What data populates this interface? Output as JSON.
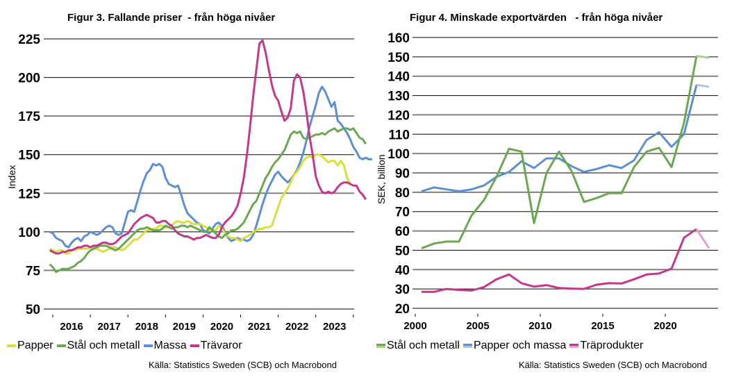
{
  "colors": {
    "papper": "#d9df3c",
    "stal": "#6aa84f",
    "massa": "#5b8fd4",
    "travaror": "#c4378a",
    "stal_light": "#a9d18e",
    "massa_light": "#a8c4ea",
    "tra_light": "#e8a0c8",
    "grid_dark": "#000000",
    "grid_gray": "#808080"
  },
  "chart_data": [
    {
      "type": "line",
      "title": "Figur 3. Fallande priser  - från höga nivåer",
      "ylabel": "Index",
      "ylim": [
        50,
        225
      ],
      "ytick_values": [
        50,
        75,
        100,
        125,
        150,
        175,
        200,
        225
      ],
      "yticks": [
        "50",
        "75",
        "100",
        "125",
        "150",
        "175",
        "200",
        "225"
      ],
      "xlim": [
        2015.85,
        2024.0
      ],
      "xtick_labels": [
        "2016",
        "2017",
        "2018",
        "2019",
        "2020",
        "2021",
        "2022",
        "2023"
      ],
      "xtick_marks": [
        2016,
        2017,
        2018,
        2019,
        2020,
        2021,
        2022,
        2023,
        2024
      ],
      "grid": true,
      "legend_position": "bottom",
      "legend": [
        "Papper",
        "Stål och metall",
        "Massa",
        "Trävaror"
      ],
      "source": "Källa: Statistics Sweden (SCB) och Macrobond",
      "x_start": 2015.92,
      "x_step": 0.0833,
      "series": [
        {
          "name": "Papper",
          "color_key": "papper",
          "values": [
            89,
            88,
            87,
            88,
            88,
            86,
            86,
            88,
            88,
            89,
            89,
            89,
            89,
            90,
            90,
            89,
            88,
            87,
            88,
            89,
            90,
            90,
            89,
            88,
            89,
            91,
            93,
            95,
            95,
            97,
            99,
            101,
            101,
            102,
            102,
            104,
            104,
            103,
            103,
            104,
            106,
            107,
            106,
            106,
            107,
            106,
            105,
            105,
            105,
            104,
            103,
            101,
            101,
            101,
            104,
            102,
            99,
            97,
            96,
            96,
            95,
            94,
            96,
            97,
            98,
            100,
            101,
            102,
            102,
            103,
            103,
            104,
            110,
            116,
            122,
            125,
            128,
            132,
            137,
            139,
            142,
            146,
            148,
            149,
            148,
            150,
            150,
            149,
            147,
            145,
            146,
            146,
            143,
            146,
            143,
            135,
            131
          ]
        },
        {
          "name": "Stål och metall",
          "color_key": "stal",
          "values": [
            79,
            77,
            74,
            75,
            76,
            76,
            76,
            77,
            78,
            80,
            81,
            83,
            86,
            88,
            89,
            90,
            91,
            91,
            91,
            90,
            89,
            88,
            89,
            91,
            93,
            95,
            97,
            99,
            101,
            102,
            102,
            103,
            102,
            101,
            101,
            101,
            102,
            104,
            103,
            102,
            103,
            103,
            104,
            104,
            103,
            104,
            103,
            102,
            101,
            100,
            100,
            103,
            101,
            99,
            97,
            96,
            98,
            99,
            101,
            101,
            102,
            104,
            106,
            110,
            114,
            118,
            120,
            125,
            130,
            135,
            138,
            142,
            145,
            147,
            150,
            153,
            158,
            163,
            165,
            164,
            165,
            161,
            160,
            161,
            162,
            163,
            163,
            164,
            163,
            165,
            166,
            167,
            165,
            166,
            167,
            167,
            166,
            167,
            164,
            161,
            160,
            157
          ]
        },
        {
          "name": "Massa",
          "color_key": "massa",
          "values": [
            100,
            99,
            96,
            95,
            94,
            91,
            90,
            93,
            95,
            96,
            94,
            97,
            98,
            100,
            99,
            98,
            99,
            101,
            103,
            104,
            103,
            99,
            98,
            99,
            106,
            113,
            114,
            113,
            120,
            127,
            133,
            138,
            140,
            144,
            143,
            144,
            142,
            135,
            131,
            130,
            129,
            130,
            124,
            117,
            112,
            110,
            108,
            106,
            105,
            101,
            100,
            99,
            102,
            105,
            106,
            104,
            100,
            96,
            94,
            95,
            96,
            95,
            95,
            94,
            95,
            98,
            104,
            111,
            118,
            124,
            129,
            133,
            137,
            139,
            136,
            134,
            132,
            134,
            137,
            140,
            145,
            151,
            159,
            168,
            175,
            182,
            190,
            194,
            191,
            186,
            181,
            184,
            172,
            170,
            167,
            164,
            160,
            155,
            152,
            148,
            147,
            148,
            147,
            147
          ]
        },
        {
          "name": "Trävaror",
          "color_key": "travaror",
          "values": [
            88,
            87,
            86,
            86,
            87,
            87,
            88,
            88,
            89,
            90,
            90,
            91,
            91,
            90,
            91,
            91,
            92,
            93,
            93,
            92,
            92,
            93,
            95,
            97,
            98,
            99,
            102,
            105,
            107,
            109,
            110,
            111,
            110,
            109,
            106,
            106,
            107,
            107,
            105,
            104,
            101,
            99,
            98,
            97,
            97,
            96,
            95,
            96,
            96,
            97,
            98,
            97,
            96,
            96,
            98,
            103,
            106,
            108,
            110,
            113,
            117,
            125,
            135,
            150,
            168,
            188,
            205,
            222,
            224,
            216,
            205,
            195,
            188,
            185,
            178,
            172,
            174,
            180,
            198,
            202,
            200,
            191,
            178,
            162,
            150,
            136,
            130,
            126,
            125,
            126,
            125,
            126,
            129,
            131,
            132,
            132,
            131,
            130,
            130,
            126,
            124,
            121
          ]
        }
      ]
    },
    {
      "type": "line",
      "title": "Figur 4. Minskade exportvärden   - från höga nivåer",
      "ylabel": "SEK, billion",
      "ylim": [
        20,
        160
      ],
      "ytick_values": [
        20,
        30,
        40,
        50,
        60,
        70,
        80,
        90,
        100,
        110,
        120,
        130,
        140,
        150,
        160
      ],
      "yticks": [
        "20",
        "30",
        "40",
        "50",
        "60",
        "70",
        "80",
        "90",
        "100",
        "110",
        "120",
        "130",
        "140",
        "150",
        "160"
      ],
      "xlim": [
        2000,
        2024.9
      ],
      "xtick_labels": [
        "2000",
        "2005",
        "2010",
        "2015",
        "2020"
      ],
      "xtick_values": [
        2000,
        2005,
        2010,
        2015,
        2020
      ],
      "grid": true,
      "legend_position": "bottom",
      "legend": [
        "Stål och metall",
        "Papper och massa",
        "Träprodukter"
      ],
      "source": "Källa: Statistics Sweden (SCB) och Macrobond",
      "x": [
        2000.5,
        2001.5,
        2002.5,
        2003.5,
        2004.5,
        2005.5,
        2006.5,
        2007.5,
        2008.5,
        2009.5,
        2010.5,
        2011.5,
        2012.5,
        2013.5,
        2014.5,
        2015.5,
        2016.5,
        2017.5,
        2018.5,
        2019.5,
        2020.5,
        2021.5,
        2022.5,
        2023.5
      ],
      "series": [
        {
          "name": "Stål och metall",
          "color_key": "stal",
          "light_key": "stal_light",
          "values": [
            51,
            53.5,
            54.5,
            54.5,
            68,
            76,
            88,
            102.5,
            101,
            64,
            90,
            101,
            91,
            75,
            77,
            79.5,
            79.5,
            93,
            101,
            103,
            93,
            116,
            150.5,
            149.5
          ]
        },
        {
          "name": "Papper och massa",
          "color_key": "massa",
          "light_key": "massa_light",
          "values": [
            80.5,
            82.5,
            81.5,
            80.5,
            81.5,
            83.5,
            88,
            90.5,
            96,
            92.5,
            97.5,
            97.5,
            93.5,
            90.5,
            92,
            94,
            92.5,
            96.5,
            107,
            111,
            103.5,
            110,
            135.5,
            134.5
          ]
        },
        {
          "name": "Träprodukter",
          "color_key": "travaror",
          "light_key": "tra_light",
          "values": [
            28.5,
            28.5,
            30,
            29.5,
            29.2,
            31,
            35,
            37.5,
            33,
            31.2,
            32,
            30.5,
            30.2,
            30,
            32.2,
            33,
            32.8,
            35,
            37.5,
            38,
            40.5,
            56.5,
            61,
            51
          ]
        }
      ]
    }
  ]
}
